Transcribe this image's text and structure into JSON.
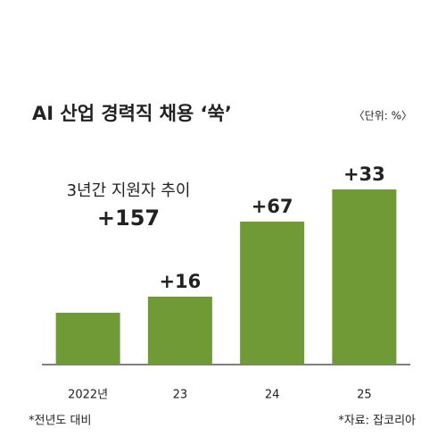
{
  "chart_data": {
    "type": "bar",
    "title": "AI 산업 경력직 채용 ‘쑥’",
    "unit": "〈단위: %〉",
    "annotation": {
      "title": "3년간 지원자 추이",
      "value": "+157"
    },
    "categories": [
      "2022년",
      "23",
      "24",
      "25"
    ],
    "values": [
      58,
      76,
      160,
      196
    ],
    "changes": [
      null,
      16,
      67,
      33
    ],
    "change_labels": [
      null,
      "+16",
      "+67",
      "+33"
    ],
    "color": "#6f9a35",
    "ylim": [
      0,
      210
    ],
    "notes": [
      "*전년도 대비",
      "*자료: 잡코리아"
    ]
  }
}
